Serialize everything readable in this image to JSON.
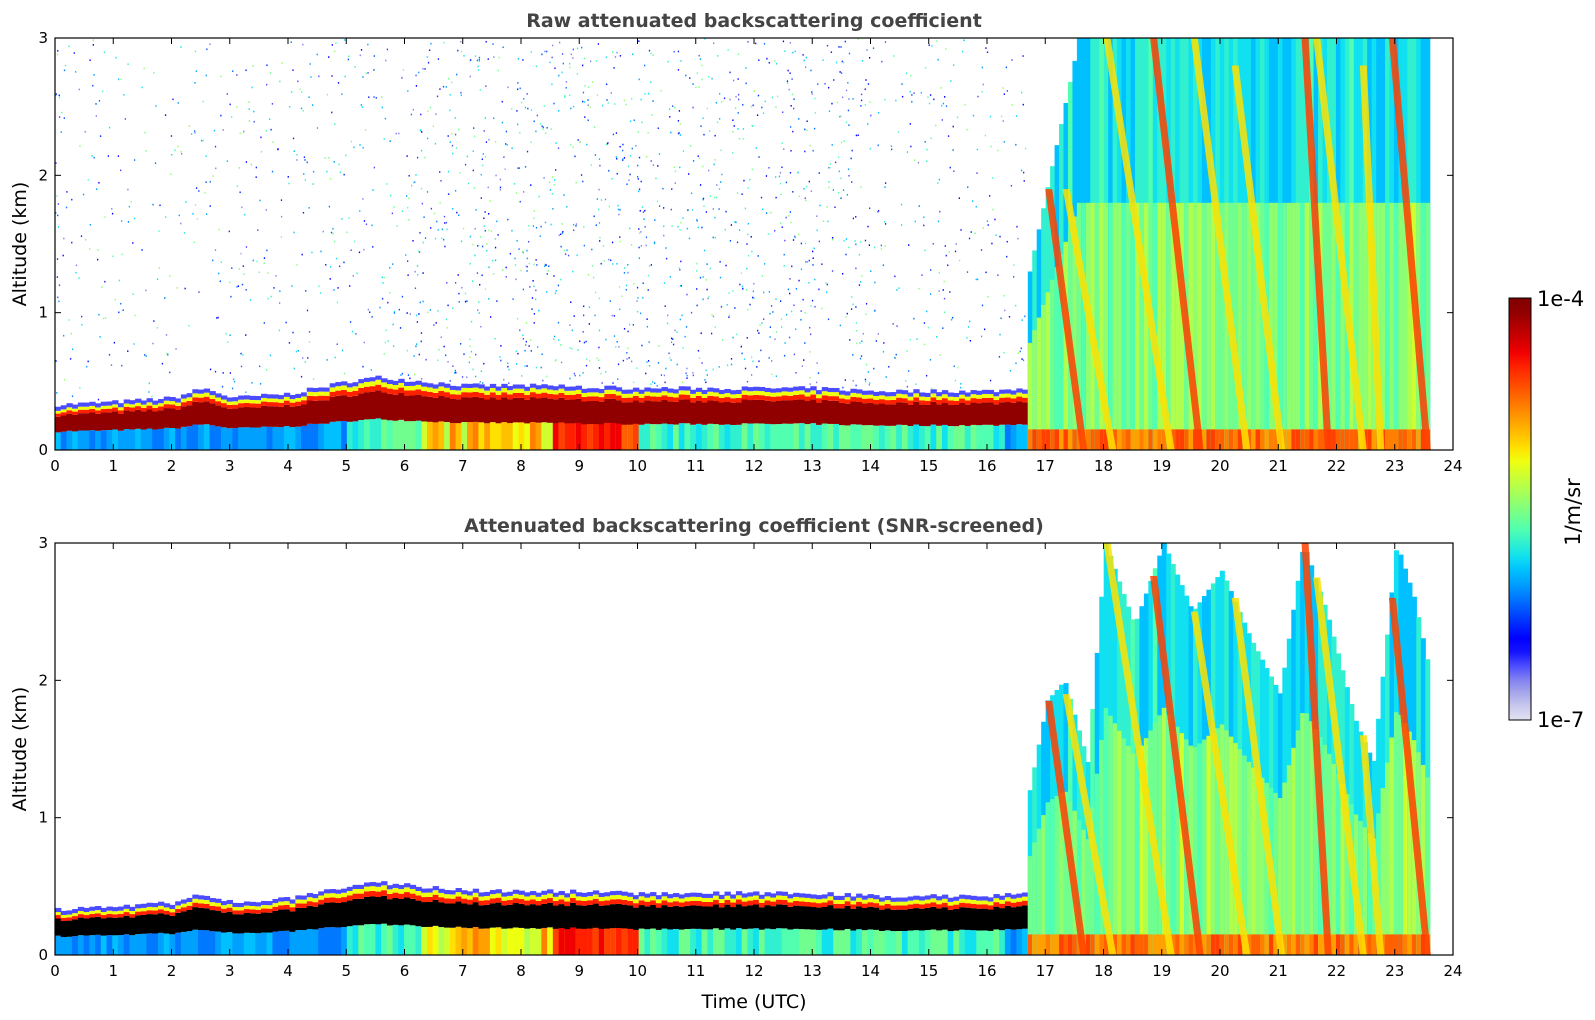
{
  "chart_data": [
    {
      "type": "heatmap",
      "title": "Raw attenuated backscattering coefficient",
      "xlabel": "",
      "ylabel": "Altitude (km)",
      "xlim": [
        0,
        24
      ],
      "ylim": [
        0,
        3
      ],
      "xticks": [
        "0",
        "1",
        "2",
        "3",
        "4",
        "5",
        "6",
        "7",
        "8",
        "9",
        "10",
        "11",
        "12",
        "13",
        "14",
        "15",
        "16",
        "17",
        "18",
        "19",
        "20",
        "21",
        "22",
        "23",
        "24"
      ],
      "yticks": [
        "0",
        "1",
        "2",
        "3"
      ],
      "data_end_hour": 23.6,
      "cloud_onset_hour": 16.7,
      "boundary_layer_top_km": [
        {
          "t": 0,
          "z": 0.3
        },
        {
          "t": 1,
          "z": 0.32
        },
        {
          "t": 2,
          "z": 0.35
        },
        {
          "t": 2.5,
          "z": 0.42
        },
        {
          "t": 3,
          "z": 0.35
        },
        {
          "t": 4,
          "z": 0.38
        },
        {
          "t": 5,
          "z": 0.47
        },
        {
          "t": 5.5,
          "z": 0.5
        },
        {
          "t": 6,
          "z": 0.48
        },
        {
          "t": 7,
          "z": 0.44
        },
        {
          "t": 8,
          "z": 0.44
        },
        {
          "t": 9,
          "z": 0.43
        },
        {
          "t": 10,
          "z": 0.42
        },
        {
          "t": 11,
          "z": 0.42
        },
        {
          "t": 12,
          "z": 0.42
        },
        {
          "t": 13,
          "z": 0.42
        },
        {
          "t": 14,
          "z": 0.4
        },
        {
          "t": 15,
          "z": 0.4
        },
        {
          "t": 16,
          "z": 0.4
        },
        {
          "t": 16.7,
          "z": 0.42
        }
      ],
      "fall_streaks": [
        {
          "top_t": 17.0,
          "top_z": 1.9,
          "bottom_t": 17.6
        },
        {
          "top_t": 17.3,
          "top_z": 1.9,
          "bottom_t": 18.1
        },
        {
          "top_t": 18.0,
          "top_z": 3.0,
          "bottom_t": 19.1
        },
        {
          "top_t": 18.8,
          "top_z": 3.0,
          "bottom_t": 19.6
        },
        {
          "top_t": 19.5,
          "top_z": 3.0,
          "bottom_t": 20.4
        },
        {
          "top_t": 20.2,
          "top_z": 2.8,
          "bottom_t": 21.0
        },
        {
          "top_t": 21.4,
          "top_z": 3.0,
          "bottom_t": 21.8
        },
        {
          "top_t": 21.6,
          "top_z": 3.0,
          "bottom_t": 22.4
        },
        {
          "top_t": 22.4,
          "top_z": 2.8,
          "bottom_t": 22.7
        },
        {
          "top_t": 22.9,
          "top_z": 3.0,
          "bottom_t": 23.5
        }
      ]
    },
    {
      "type": "heatmap",
      "title": "Attenuated backscattering coefficient (SNR-screened)",
      "xlabel": "Time (UTC)",
      "ylabel": "Altitude (km)",
      "xlim": [
        0,
        24
      ],
      "ylim": [
        0,
        3
      ],
      "xticks": [
        "0",
        "1",
        "2",
        "3",
        "4",
        "5",
        "6",
        "7",
        "8",
        "9",
        "10",
        "11",
        "12",
        "13",
        "14",
        "15",
        "16",
        "17",
        "18",
        "19",
        "20",
        "21",
        "22",
        "23",
        "24"
      ],
      "yticks": [
        "0",
        "1",
        "2",
        "3"
      ],
      "data_end_hour": 23.6,
      "cloud_onset_hour": 16.7,
      "cloud_envelope_top_km": [
        {
          "t": 16.7,
          "z": 1.2
        },
        {
          "t": 17.0,
          "z": 1.85
        },
        {
          "t": 17.3,
          "z": 2.0
        },
        {
          "t": 17.7,
          "z": 1.4
        },
        {
          "t": 18.0,
          "z": 3.0
        },
        {
          "t": 18.5,
          "z": 2.4
        },
        {
          "t": 19.0,
          "z": 3.0
        },
        {
          "t": 19.5,
          "z": 2.5
        },
        {
          "t": 20.0,
          "z": 2.8
        },
        {
          "t": 20.5,
          "z": 2.3
        },
        {
          "t": 21.0,
          "z": 1.9
        },
        {
          "t": 21.4,
          "z": 3.0
        },
        {
          "t": 21.8,
          "z": 2.5
        },
        {
          "t": 22.3,
          "z": 1.7
        },
        {
          "t": 22.6,
          "z": 1.4
        },
        {
          "t": 23.0,
          "z": 3.0
        },
        {
          "t": 23.3,
          "z": 2.6
        },
        {
          "t": 23.6,
          "z": 2.0
        }
      ]
    }
  ],
  "colorbar": {
    "label": "1/m/sr",
    "max_label": "1e-4",
    "min_label": "1e-7",
    "colors": [
      "#e2e2f2",
      "#c9c9ee",
      "#a6a6ea",
      "#7f7ff3",
      "#4b4bff",
      "#1414ff",
      "#0000ff",
      "#0028ff",
      "#0050ff",
      "#0078ff",
      "#00a0ff",
      "#00c0ff",
      "#10e0ef",
      "#30f0cf",
      "#50ffaf",
      "#70ff8f",
      "#90ff6f",
      "#b0ff4f",
      "#d0ff2f",
      "#efff10",
      "#ffe000",
      "#ffc000",
      "#ffa000",
      "#ff8000",
      "#ff6000",
      "#ff4000",
      "#ff2000",
      "#f00000",
      "#d00000",
      "#b00000",
      "#900000",
      "#800000"
    ]
  }
}
